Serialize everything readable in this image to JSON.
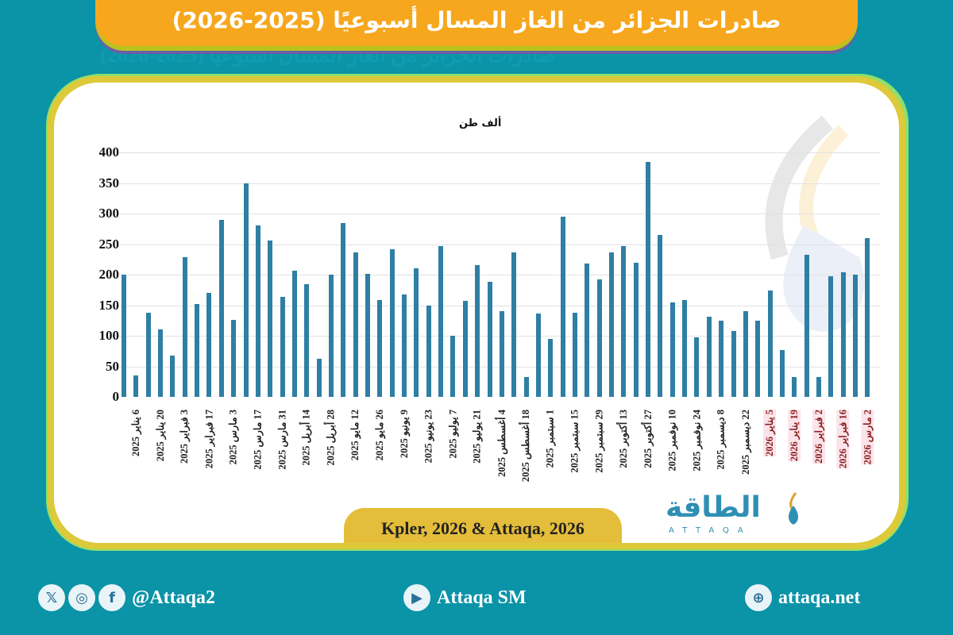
{
  "header": {
    "title": "صادرات الجزائر من الغاز المسال أسبوعيًا (2025-2026)"
  },
  "chart": {
    "unit_label": "ألف طن",
    "source": "Kpler, 2026 & Attaqa, 2026"
  },
  "logo": {
    "arabic": "الطاقة",
    "english": "ATTAQA"
  },
  "footer": {
    "social_handle": "@Attaqa2",
    "youtube": "Attaqa SM",
    "website": "attaqa.net",
    "icons": [
      "x-icon",
      "instagram-icon",
      "facebook-icon",
      "youtube-icon",
      "globe-icon"
    ]
  },
  "colors": {
    "background": "#0b93a8",
    "title_bar": "#f6a71e",
    "card_border": "#ddc93a",
    "bar": "#2e7fa3",
    "label_2026": "#8a1f1f"
  },
  "chart_data": {
    "type": "bar",
    "title": "صادرات الجزائر من الغاز المسال أسبوعيًا (2025-2026)",
    "xlabel": "",
    "ylabel": "ألف طن",
    "ylim": [
      0,
      400
    ],
    "yticks": [
      0,
      50,
      100,
      150,
      200,
      250,
      300,
      350,
      400
    ],
    "grid": true,
    "legend": "none",
    "categories_labeled": [
      "6 يناير 2025",
      "20 يناير 2025",
      "3 فبراير 2025",
      "17 فبراير 2025",
      "3 مارس 2025",
      "17 مارس 2025",
      "31 مارس 2025",
      "14 أبريل 2025",
      "28 أبريل 2025",
      "12 مايو 2025",
      "26 مايو 2025",
      "9 يونيو 2025",
      "23 يونيو 2025",
      "7 يوليو 2025",
      "21 يوليو 2025",
      "4 أغسطس 2025",
      "18 أغسطس 2025",
      "1 سبتمبر 2025",
      "15 سبتمبر 2025",
      "29 سبتمبر 2025",
      "13 أكتوبر 2025",
      "27 أكتوبر 2025",
      "10 نوفمبر 2025",
      "24 نوفمبر 2025",
      "8 ديسمبر 2025",
      "22 ديسمبر 2025",
      "5 يناير 2026",
      "19 يناير 2026",
      "2 فبراير 2026",
      "16 فبراير 2026",
      "2 مارس 2026"
    ],
    "values": [
      200,
      35,
      138,
      110,
      67,
      228,
      152,
      170,
      290,
      126,
      350,
      281,
      256,
      164,
      206,
      185,
      62,
      200,
      285,
      236,
      201,
      158,
      241,
      167,
      210,
      150,
      247,
      100,
      157,
      215,
      188,
      140,
      237,
      33,
      136,
      95,
      295,
      138,
      218,
      192,
      237,
      247,
      220,
      385,
      265,
      155,
      158,
      98,
      131,
      125,
      108,
      140,
      125,
      174,
      77,
      33,
      233,
      33,
      197,
      204,
      200,
      260
    ]
  }
}
